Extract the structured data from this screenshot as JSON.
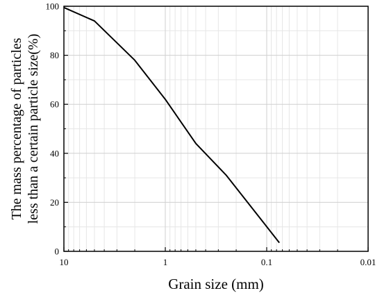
{
  "chart_data": {
    "type": "line",
    "title": "",
    "xlabel": "Grain size (mm)",
    "ylabel_lines": [
      "The mass percentage of particles",
      "less than a certain particle size(%)"
    ],
    "x_scale": "log",
    "x_reversed": true,
    "xlim": [
      10,
      0.01
    ],
    "ylim": [
      0,
      100
    ],
    "x_ticks": [
      10,
      1,
      0.1,
      0.01
    ],
    "x_tick_labels": [
      "10",
      "1",
      "0.1",
      "0.01"
    ],
    "y_ticks": [
      0,
      20,
      40,
      60,
      80,
      100
    ],
    "y_tick_labels": [
      "0",
      "20",
      "40",
      "60",
      "80",
      "100"
    ],
    "grid": true,
    "series": [
      {
        "x": [
          10,
          5,
          2,
          1,
          0.5,
          0.25,
          0.075
        ],
        "y": [
          99.5,
          94,
          78,
          62,
          44,
          31,
          3.5
        ],
        "color": "#000000"
      }
    ]
  }
}
